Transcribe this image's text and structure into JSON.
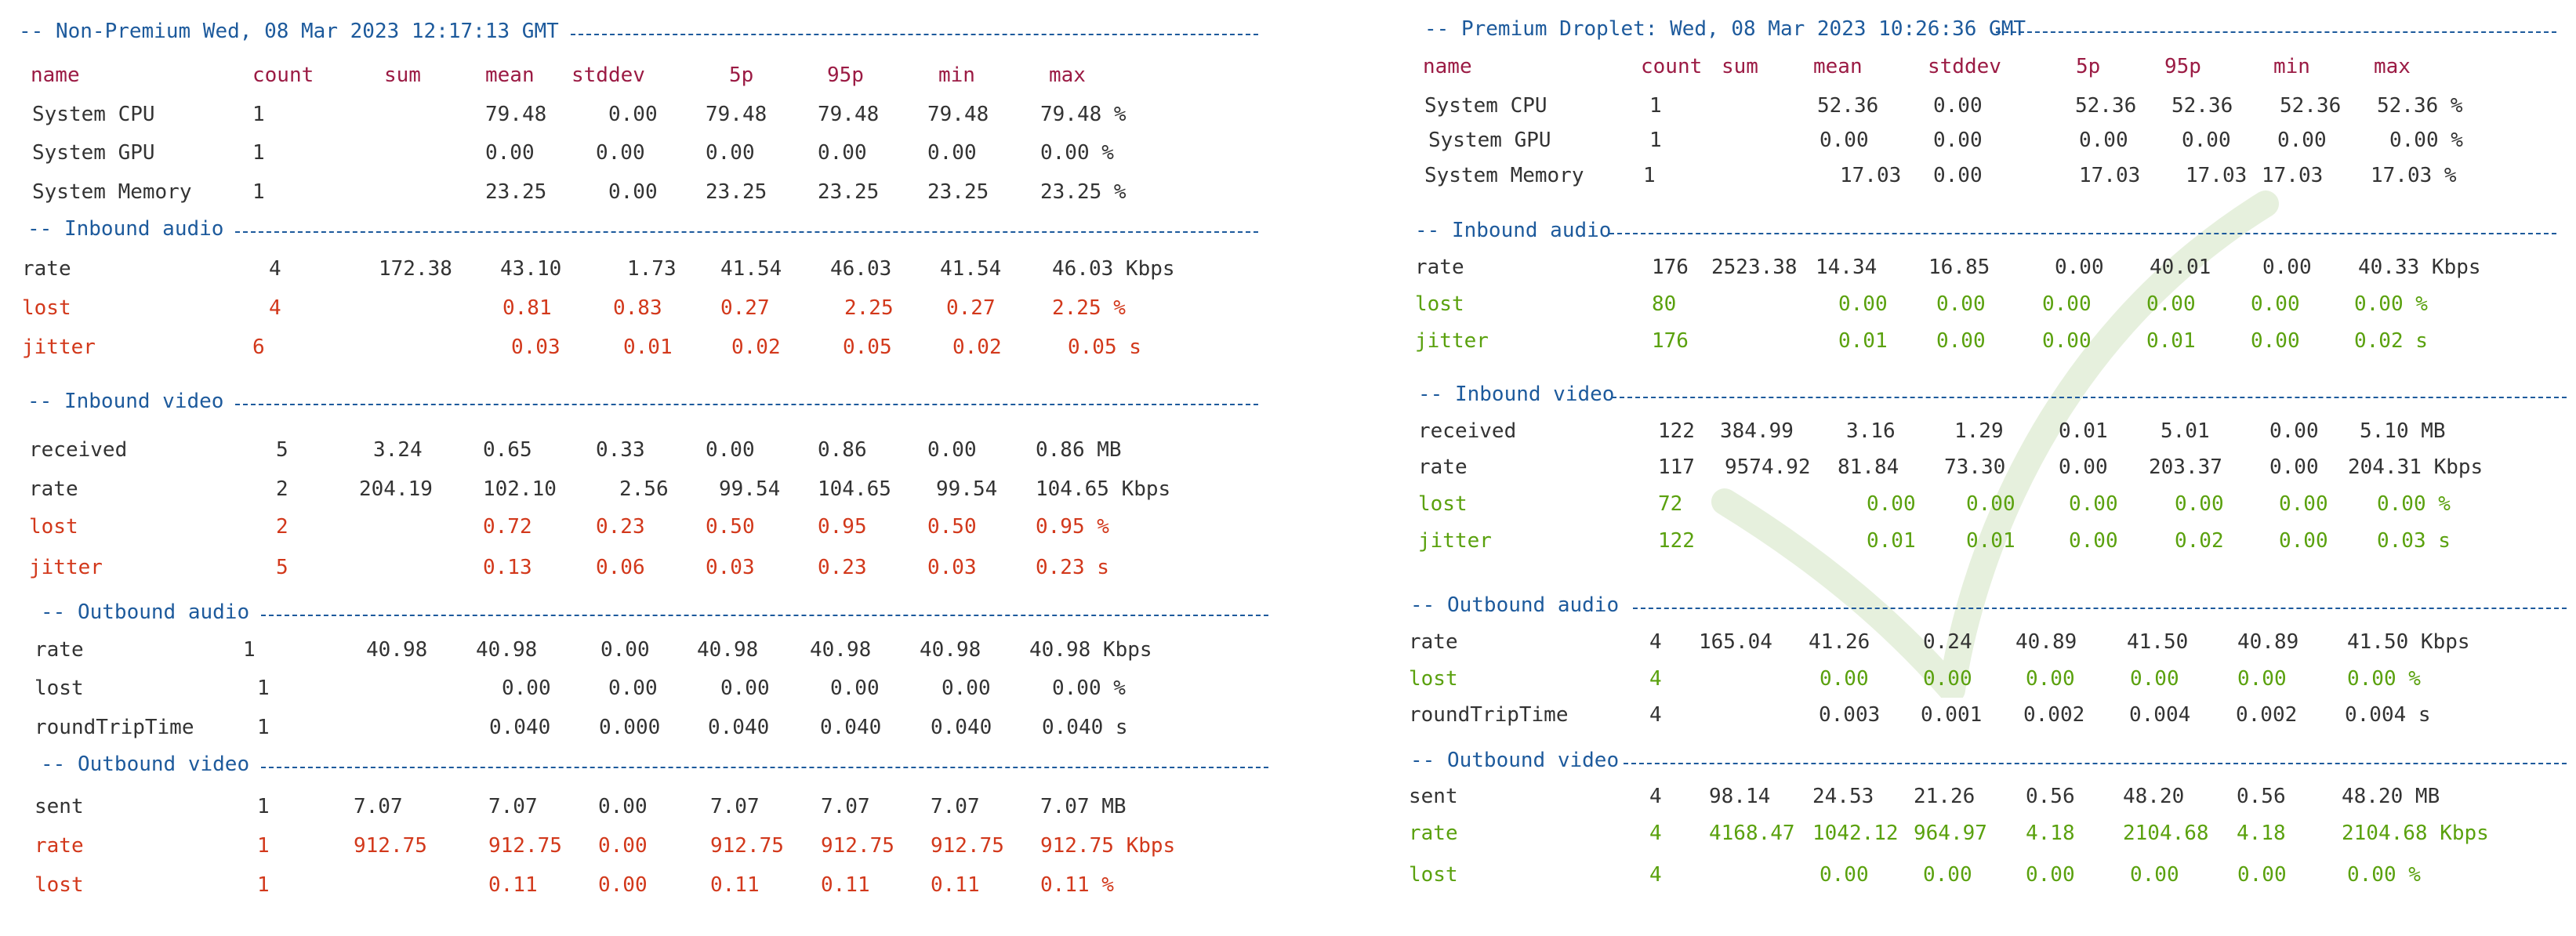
{
  "left": {
    "title": "-- Non-Premium Wed, 08 Mar 2023 12:17:13 GMT",
    "columns": [
      "name",
      "count",
      "sum",
      "mean",
      "stddev",
      "5p",
      "95p",
      "min",
      "max"
    ],
    "system": [
      {
        "name": "System CPU",
        "count": "1",
        "sum": "",
        "mean": "79.48",
        "stddev": "0.00",
        "p5": "79.48",
        "p95": "79.48",
        "min": "79.48",
        "max": "79.48 %"
      },
      {
        "name": "System GPU",
        "count": "1",
        "sum": "",
        "mean": "0.00",
        "stddev": "0.00",
        "p5": "0.00",
        "p95": "0.00",
        "min": "0.00",
        "max": "0.00 %"
      },
      {
        "name": "System Memory",
        "count": "1",
        "sum": "",
        "mean": "23.25",
        "stddev": "0.00",
        "p5": "23.25",
        "p95": "23.25",
        "min": "23.25",
        "max": "23.25 %"
      }
    ],
    "inbound_audio": {
      "title": "-- Inbound audio",
      "rows": [
        {
          "name": "rate",
          "count": "4",
          "sum": "172.38",
          "mean": "43.10",
          "stddev": "1.73",
          "p5": "41.54",
          "p95": "46.03",
          "min": "41.54",
          "max": "46.03 Kbps"
        },
        {
          "name": "lost",
          "count": "4",
          "sum": "",
          "mean": "0.81",
          "stddev": "0.83",
          "p5": "0.27",
          "p95": "2.25",
          "min": "0.27",
          "max": "2.25 %"
        },
        {
          "name": "jitter",
          "count": "6",
          "sum": "",
          "mean": "0.03",
          "stddev": "0.01",
          "p5": "0.02",
          "p95": "0.05",
          "min": "0.02",
          "max": "0.05 s"
        }
      ]
    },
    "inbound_video": {
      "title": "-- Inbound video",
      "rows": [
        {
          "name": "received",
          "count": "5",
          "sum": "3.24",
          "mean": "0.65",
          "stddev": "0.33",
          "p5": "0.00",
          "p95": "0.86",
          "min": "0.00",
          "max": "0.86 MB"
        },
        {
          "name": "rate",
          "count": "2",
          "sum": "204.19",
          "mean": "102.10",
          "stddev": "2.56",
          "p5": "99.54",
          "p95": "104.65",
          "min": "99.54",
          "max": "104.65 Kbps"
        },
        {
          "name": "lost",
          "count": "2",
          "sum": "",
          "mean": "0.72",
          "stddev": "0.23",
          "p5": "0.50",
          "p95": "0.95",
          "min": "0.50",
          "max": "0.95 %"
        },
        {
          "name": "jitter",
          "count": "5",
          "sum": "",
          "mean": "0.13",
          "stddev": "0.06",
          "p5": "0.03",
          "p95": "0.23",
          "min": "0.03",
          "max": "0.23 s"
        }
      ]
    },
    "outbound_audio": {
      "title": "-- Outbound audio",
      "rows": [
        {
          "name": "rate",
          "count": "1",
          "sum": "40.98",
          "mean": "40.98",
          "stddev": "0.00",
          "p5": "40.98",
          "p95": "40.98",
          "min": "40.98",
          "max": "40.98 Kbps"
        },
        {
          "name": "lost",
          "count": "1",
          "sum": "",
          "mean": "0.00",
          "stddev": "0.00",
          "p5": "0.00",
          "p95": "0.00",
          "min": "0.00",
          "max": "0.00 %"
        },
        {
          "name": "roundTripTime",
          "count": "1",
          "sum": "",
          "mean": "0.040",
          "stddev": "0.000",
          "p5": "0.040",
          "p95": "0.040",
          "min": "0.040",
          "max": "0.040 s"
        }
      ]
    },
    "outbound_video": {
      "title": "-- Outbound video",
      "rows": [
        {
          "name": "sent",
          "count": "1",
          "sum": "7.07",
          "mean": "7.07",
          "stddev": "0.00",
          "p5": "7.07",
          "p95": "7.07",
          "min": "7.07",
          "max": "7.07 MB"
        },
        {
          "name": "rate",
          "count": "1",
          "sum": "912.75",
          "mean": "912.75",
          "stddev": "0.00",
          "p5": "912.75",
          "p95": "912.75",
          "min": "912.75",
          "max": "912.75 Kbps"
        },
        {
          "name": "lost",
          "count": "1",
          "sum": "",
          "mean": "0.11",
          "stddev": "0.00",
          "p5": "0.11",
          "p95": "0.11",
          "min": "0.11",
          "max": "0.11 %"
        }
      ]
    }
  },
  "right": {
    "title": "-- Premium Droplet: Wed, 08 Mar 2023 10:26:36 GMT",
    "columns": [
      "name",
      "count",
      "sum",
      "mean",
      "stddev",
      "5p",
      "95p",
      "min",
      "max"
    ],
    "system": [
      {
        "name": "System CPU",
        "count": "1",
        "sum": "",
        "mean": "52.36",
        "stddev": "0.00",
        "p5": "52.36",
        "p95": "52.36",
        "min": "52.36",
        "max": "52.36 %"
      },
      {
        "name": "System GPU",
        "count": "1",
        "sum": "",
        "mean": "0.00",
        "stddev": "0.00",
        "p5": "0.00",
        "p95": "0.00",
        "min": "0.00",
        "max": "0.00 %"
      },
      {
        "name": "System Memory",
        "count": "1",
        "sum": "",
        "mean": "17.03",
        "stddev": "0.00",
        "p5": "17.03",
        "p95": "17.03",
        "min": "17.03",
        "max": "17.03 %"
      }
    ],
    "inbound_audio": {
      "title": "-- Inbound audio",
      "rows": [
        {
          "name": "rate",
          "count": "176",
          "sum": "2523.38",
          "mean": "14.34",
          "stddev": "16.85",
          "p5": "0.00",
          "p95": "40.01",
          "min": "0.00",
          "max": "40.33 Kbps"
        },
        {
          "name": "lost",
          "count": "80",
          "sum": "",
          "mean": "0.00",
          "stddev": "0.00",
          "p5": "0.00",
          "p95": "0.00",
          "min": "0.00",
          "max": "0.00 %"
        },
        {
          "name": "jitter",
          "count": "176",
          "sum": "",
          "mean": "0.01",
          "stddev": "0.00",
          "p5": "0.00",
          "p95": "0.01",
          "min": "0.00",
          "max": "0.02 s"
        }
      ]
    },
    "inbound_video": {
      "title": "-- Inbound video",
      "rows": [
        {
          "name": "received",
          "count": "122",
          "sum": "384.99",
          "mean": "3.16",
          "stddev": "1.29",
          "p5": "0.01",
          "p95": "5.01",
          "min": "0.00",
          "max": "5.10 MB"
        },
        {
          "name": "rate",
          "count": "117",
          "sum": "9574.92",
          "mean": "81.84",
          "stddev": "73.30",
          "p5": "0.00",
          "p95": "203.37",
          "min": "0.00",
          "max": "204.31 Kbps"
        },
        {
          "name": "lost",
          "count": "72",
          "sum": "",
          "mean": "0.00",
          "stddev": "0.00",
          "p5": "0.00",
          "p95": "0.00",
          "min": "0.00",
          "max": "0.00 %"
        },
        {
          "name": "jitter",
          "count": "122",
          "sum": "",
          "mean": "0.01",
          "stddev": "0.01",
          "p5": "0.00",
          "p95": "0.02",
          "min": "0.00",
          "max": "0.03 s"
        }
      ]
    },
    "outbound_audio": {
      "title": "-- Outbound audio",
      "rows": [
        {
          "name": "rate",
          "count": "4",
          "sum": "165.04",
          "mean": "41.26",
          "stddev": "0.24",
          "p5": "40.89",
          "p95": "41.50",
          "min": "40.89",
          "max": "41.50 Kbps"
        },
        {
          "name": "lost",
          "count": "4",
          "sum": "",
          "mean": "0.00",
          "stddev": "0.00",
          "p5": "0.00",
          "p95": "0.00",
          "min": "0.00",
          "max": "0.00 %"
        },
        {
          "name": "roundTripTime",
          "count": "4",
          "sum": "",
          "mean": "0.003",
          "stddev": "0.001",
          "p5": "0.002",
          "p95": "0.004",
          "min": "0.002",
          "max": "0.004 s"
        }
      ]
    },
    "outbound_video": {
      "title": "-- Outbound video",
      "rows": [
        {
          "name": "sent",
          "count": "4",
          "sum": "98.14",
          "mean": "24.53",
          "stddev": "21.26",
          "p5": "0.56",
          "p95": "48.20",
          "min": "0.56",
          "max": "48.20 MB"
        },
        {
          "name": "rate",
          "count": "4",
          "sum": "4168.47",
          "mean": "1042.12",
          "stddev": "964.97",
          "p5": "4.18",
          "p95": "2104.68",
          "min": "4.18",
          "max": "2104.68 Kbps"
        },
        {
          "name": "lost",
          "count": "4",
          "sum": "",
          "mean": "0.00",
          "stddev": "0.00",
          "p5": "0.00",
          "p95": "0.00",
          "min": "0.00",
          "max": "0.00 %"
        }
      ]
    }
  },
  "colors": {
    "section": "#1d5a9c",
    "header": "#9b1b44",
    "default_text": "#333333",
    "warning_text": "#d2381b",
    "ok_text": "#5aa10e",
    "checkmark": "#e6f0dd"
  },
  "decorations": {
    "checkmark_icon": "check-icon"
  }
}
